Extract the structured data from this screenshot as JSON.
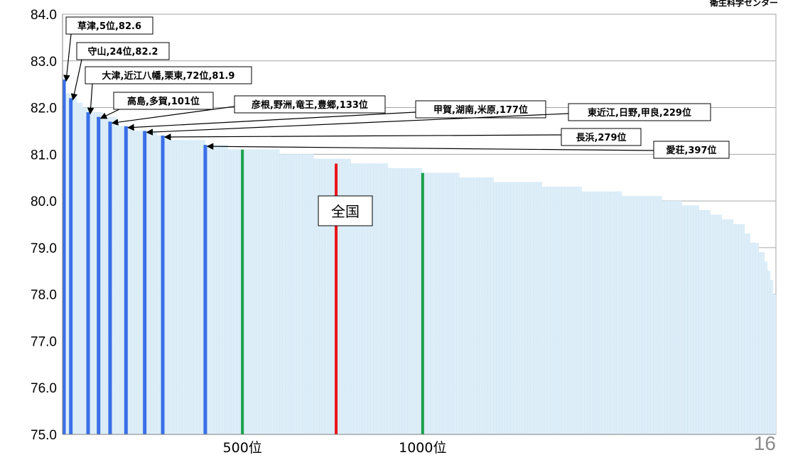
{
  "source_label": "衛生科学センター",
  "page_number": "16",
  "national_label": "全国",
  "chart_data": {
    "type": "bar",
    "ylim": [
      75.0,
      84.0
    ],
    "y_ticks": [
      "75.0",
      "76.0",
      "77.0",
      "78.0",
      "79.0",
      "80.0",
      "81.0",
      "82.0",
      "83.0",
      "84.0"
    ],
    "x_ticks": [
      {
        "rank": 500,
        "label": "500位"
      },
      {
        "rank": 1000,
        "label": "1000位"
      }
    ],
    "x_range": [
      1,
      1980
    ],
    "grid": true,
    "background_profile": [
      [
        1,
        82.6
      ],
      [
        5,
        82.6
      ],
      [
        10,
        82.3
      ],
      [
        25,
        82.2
      ],
      [
        40,
        82.1
      ],
      [
        60,
        82.0
      ],
      [
        80,
        81.9
      ],
      [
        110,
        81.8
      ],
      [
        150,
        81.6
      ],
      [
        200,
        81.5
      ],
      [
        260,
        81.4
      ],
      [
        300,
        81.3
      ],
      [
        400,
        81.2
      ],
      [
        460,
        81.1
      ],
      [
        600,
        81.0
      ],
      [
        700,
        80.9
      ],
      [
        800,
        80.8
      ],
      [
        900,
        80.7
      ],
      [
        1000,
        80.6
      ],
      [
        1100,
        80.5
      ],
      [
        1200,
        80.4
      ],
      [
        1330,
        80.3
      ],
      [
        1440,
        80.2
      ],
      [
        1550,
        80.1
      ],
      [
        1660,
        80.0
      ],
      [
        1720,
        79.9
      ],
      [
        1770,
        79.8
      ],
      [
        1800,
        79.7
      ],
      [
        1830,
        79.6
      ],
      [
        1860,
        79.5
      ],
      [
        1890,
        79.3
      ],
      [
        1910,
        79.1
      ],
      [
        1930,
        78.9
      ],
      [
        1945,
        78.7
      ],
      [
        1955,
        78.5
      ],
      [
        1965,
        78.3
      ],
      [
        1972,
        78.0
      ],
      [
        1980,
        77.6
      ]
    ],
    "background_color": "#ddeef8",
    "highlight_color": "#3a6fe8",
    "highlight_bars": [
      {
        "rank": 5,
        "value": 82.6
      },
      {
        "rank": 24,
        "value": 82.2
      },
      {
        "rank": 72,
        "value": 81.9
      },
      {
        "rank": 101,
        "value": 81.8
      },
      {
        "rank": 133,
        "value": 81.7
      },
      {
        "rank": 177,
        "value": 81.6
      },
      {
        "rank": 229,
        "value": 81.5
      },
      {
        "rank": 279,
        "value": 81.4
      },
      {
        "rank": 397,
        "value": 81.2
      }
    ],
    "reference_bars": [
      {
        "rank": 500,
        "value": 81.1,
        "color": "#1aa04a"
      },
      {
        "rank": 1000,
        "value": 80.6,
        "color": "#1aa04a"
      },
      {
        "rank": 760,
        "value": 80.8,
        "color": "#e8141a"
      }
    ],
    "callouts": [
      {
        "rank": 5,
        "value": 82.6,
        "text": "草津,5位,82.6"
      },
      {
        "rank": 24,
        "value": 82.2,
        "text": "守山,24位,82.2"
      },
      {
        "rank": 72,
        "value": 81.9,
        "text": "大津,近江八幡,栗東,72位,81.9"
      },
      {
        "rank": 101,
        "value": 81.8,
        "text": "高島,多賀,101位"
      },
      {
        "rank": 133,
        "value": 81.7,
        "text": "彦根,野洲,竜王,豊郷,133位"
      },
      {
        "rank": 177,
        "value": 81.6,
        "text": "甲賀,湖南,米原,177位"
      },
      {
        "rank": 229,
        "value": 81.5,
        "text": "東近江,日野,甲良,229位"
      },
      {
        "rank": 279,
        "value": 81.4,
        "text": "長浜,279位"
      },
      {
        "rank": 397,
        "value": 81.2,
        "text": "愛荘,397位"
      }
    ]
  }
}
